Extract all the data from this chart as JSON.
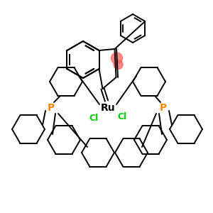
{
  "bg_color": "#ffffff",
  "bond_color": "#000000",
  "ru_color": "#000000",
  "cl_color": "#00cc00",
  "p_color": "#ff8800",
  "highlight_color": "#ff6060",
  "highlight_alpha": 0.75,
  "ru_label": "Ru",
  "cl_label": "Cl",
  "p_label": "P",
  "figsize": [
    3.0,
    3.0
  ],
  "dpi": 100
}
